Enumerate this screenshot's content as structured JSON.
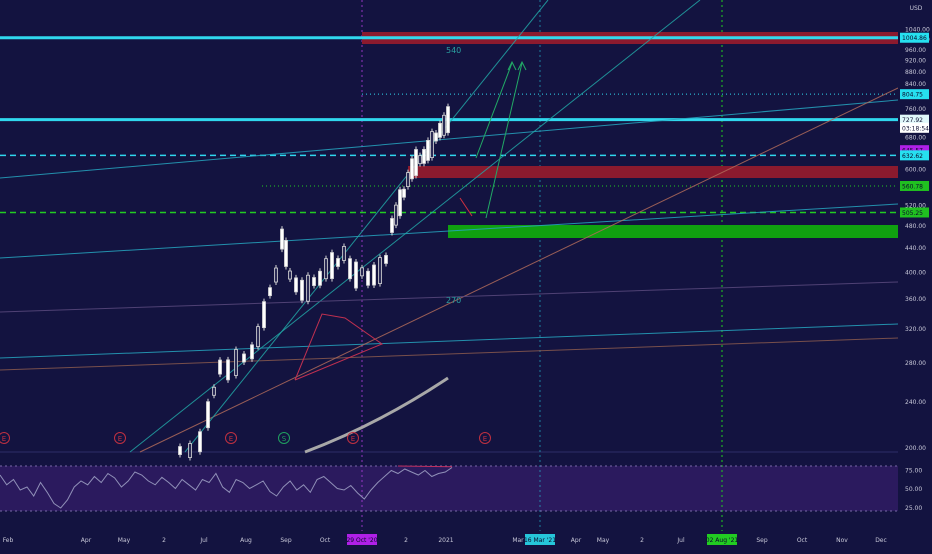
{
  "currency_label": "USD",
  "chart_data": {
    "type": "candlestick",
    "price_axis": {
      "unit": "USD",
      "scale": "log",
      "ticks": [
        "1040.00",
        "1000.00",
        "960.00",
        "920.00",
        "880.00",
        "840.00",
        "800.00",
        "760.00",
        "720.00",
        "680.00",
        "640.00",
        "600.00",
        "560.00",
        "520.00",
        "480.00",
        "440.00",
        "400.00",
        "360.00",
        "320.00",
        "280.00",
        "240.00",
        "200.00"
      ],
      "range": [
        200,
        1050
      ]
    },
    "time_axis": {
      "ticks": [
        "Feb",
        "Apr",
        "May",
        "2",
        "Jul",
        "Aug",
        "Sep",
        "Oct",
        "2",
        "2021",
        "Mar",
        "Apr",
        "May",
        "2",
        "Jul",
        "Sep",
        "Oct",
        "Nov",
        "Dec"
      ],
      "highlighted": [
        "29 Oct '20",
        "16 Mar '21",
        "02 Aug '21"
      ]
    },
    "price_labels": [
      {
        "value": 1004.86,
        "text": "1004.86",
        "color": "#26e0f0"
      },
      {
        "value": 804.75,
        "text": "804.75",
        "color": "#26e0f0"
      },
      {
        "value": 727.92,
        "text": "727.92",
        "color": "#e0f8fa"
      },
      {
        "value": 705,
        "text": "03:18:54",
        "color": "#ffffff"
      },
      {
        "value": 645.57,
        "text": "645.57",
        "color": "#b020e8"
      },
      {
        "value": 632.62,
        "text": "632.62",
        "color": "#26e0f0"
      },
      {
        "value": 560.78,
        "text": "560.78",
        "color": "#20c020"
      },
      {
        "value": 505.25,
        "text": "505.25",
        "color": "#20c020"
      }
    ],
    "annotations": [
      "540",
      "270"
    ],
    "event_markers": [
      "E",
      "E",
      "E",
      "S",
      "E",
      "E"
    ],
    "rsi": {
      "ticks": [
        "75.00",
        "50.00",
        "25.00"
      ],
      "upper": 80,
      "lower": 20
    }
  }
}
